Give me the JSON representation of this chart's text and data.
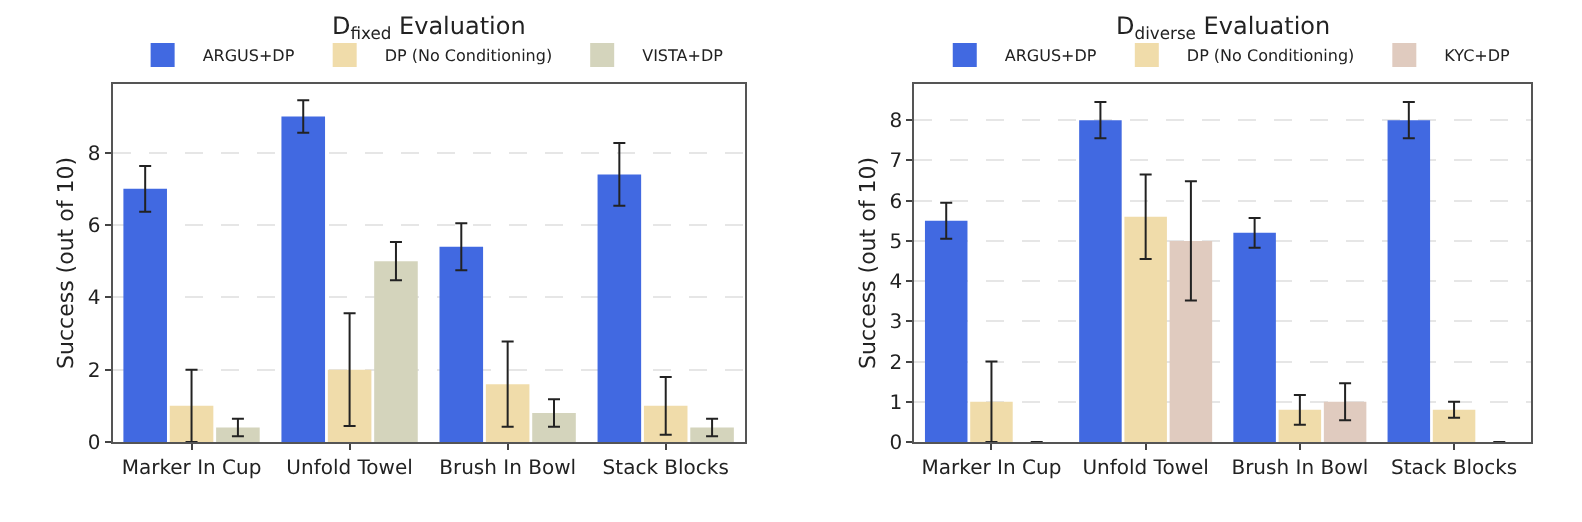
{
  "chart_data": [
    {
      "type": "bar",
      "title": "D$_{fixed}$ Evaluation",
      "ylabel": "Success (out of 10)",
      "categories": [
        "Marker In Cup",
        "Unfold Towel",
        "Brush In Bowl",
        "Stack Blocks"
      ],
      "ylim": [
        0,
        9.9
      ],
      "yticks": [
        0,
        2,
        4,
        6,
        8
      ],
      "grid": "y",
      "legend": "top",
      "series": [
        {
          "name": "ARGUS+DP",
          "color": "#4169e1",
          "values": [
            7,
            9,
            5.4,
            7.4
          ],
          "errors": [
            0.63,
            0.45,
            0.65,
            0.87
          ]
        },
        {
          "name": "DP (No Conditioning)",
          "color": "#f0dcaa",
          "values": [
            1,
            2,
            1.6,
            1
          ],
          "errors": [
            1,
            1.56,
            1.18,
            0.8
          ]
        },
        {
          "name": "VISTA+DP",
          "color": "#d4d4bc",
          "values": [
            0.4,
            5,
            0.8,
            0.4
          ],
          "errors": [
            0.24,
            0.53,
            0.38,
            0.24
          ]
        }
      ]
    },
    {
      "type": "bar",
      "title": "D$_{diverse}$ Evaluation",
      "ylabel": "Success (out of 10)",
      "categories": [
        "Marker In Cup",
        "Unfold Towel",
        "Brush In Bowl",
        "Stack Blocks"
      ],
      "ylim": [
        0,
        8.9
      ],
      "yticks": [
        0,
        1,
        2,
        3,
        4,
        5,
        6,
        7,
        8
      ],
      "grid": "y",
      "legend": "top",
      "series": [
        {
          "name": "ARGUS+DP",
          "color": "#4169e1",
          "values": [
            5.5,
            8,
            5.2,
            8
          ],
          "errors": [
            0.45,
            0.45,
            0.37,
            0.45
          ]
        },
        {
          "name": "DP (No Conditioning)",
          "color": "#f0dcaa",
          "values": [
            1,
            5.6,
            0.8,
            0.8
          ],
          "errors": [
            1,
            1.05,
            0.37,
            0.2
          ]
        },
        {
          "name": "KYC+DP",
          "color": "#e0cbbf",
          "values": [
            0,
            5,
            1,
            0
          ],
          "errors": [
            null,
            1.48,
            0.46,
            null
          ]
        }
      ]
    }
  ]
}
